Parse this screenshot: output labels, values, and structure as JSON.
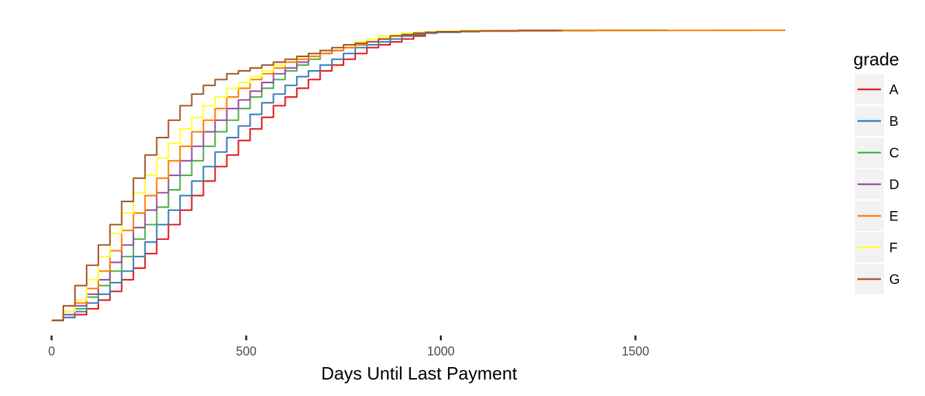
{
  "chart_data": {
    "type": "line",
    "xlabel": "Days Until Last Payment",
    "ylabel": "",
    "xlim": [
      0,
      1900
    ],
    "ylim": [
      0,
      1
    ],
    "x_ticks": [
      0,
      500,
      1000,
      1500
    ],
    "grid": false,
    "y_axis_shown": false,
    "legend": {
      "title": "grade",
      "position": "right"
    },
    "series": [
      {
        "name": "A",
        "color": "#E41A1C",
        "x": [
          0,
          30,
          60,
          90,
          120,
          150,
          180,
          210,
          240,
          270,
          300,
          330,
          360,
          390,
          420,
          450,
          480,
          510,
          540,
          570,
          600,
          630,
          660,
          690,
          720,
          750,
          780,
          810,
          840,
          870,
          900,
          930,
          960,
          990,
          1050,
          1100,
          1200,
          1310
        ],
        "y": [
          0.0,
          0.01,
          0.02,
          0.04,
          0.07,
          0.1,
          0.14,
          0.18,
          0.23,
          0.28,
          0.33,
          0.38,
          0.43,
          0.48,
          0.53,
          0.57,
          0.62,
          0.66,
          0.7,
          0.74,
          0.77,
          0.8,
          0.83,
          0.86,
          0.88,
          0.9,
          0.92,
          0.94,
          0.95,
          0.96,
          0.97,
          0.98,
          0.99,
          0.995,
          0.997,
          0.998,
          0.999,
          1.0
        ]
      },
      {
        "name": "B",
        "color": "#377EB8",
        "x": [
          0,
          30,
          60,
          90,
          120,
          150,
          180,
          210,
          240,
          270,
          300,
          330,
          360,
          390,
          420,
          450,
          480,
          510,
          540,
          570,
          600,
          630,
          660,
          690,
          720,
          750,
          780,
          810,
          840,
          870,
          900,
          930,
          960,
          990,
          1050,
          1100,
          1200,
          1300,
          1400,
          1500,
          1585
        ],
        "y": [
          0.0,
          0.01,
          0.03,
          0.06,
          0.09,
          0.13,
          0.17,
          0.22,
          0.27,
          0.33,
          0.38,
          0.43,
          0.48,
          0.53,
          0.58,
          0.63,
          0.67,
          0.71,
          0.75,
          0.78,
          0.81,
          0.84,
          0.86,
          0.88,
          0.9,
          0.92,
          0.94,
          0.95,
          0.96,
          0.97,
          0.98,
          0.985,
          0.99,
          0.993,
          0.995,
          0.997,
          0.998,
          0.999,
          0.9995,
          1.0,
          1.0
        ]
      },
      {
        "name": "C",
        "color": "#4DAF4A",
        "x": [
          0,
          30,
          60,
          90,
          120,
          150,
          180,
          210,
          240,
          270,
          300,
          330,
          360,
          390,
          420,
          450,
          480,
          510,
          540,
          570,
          600,
          630,
          660,
          690,
          720,
          750,
          780,
          810,
          840,
          870,
          900,
          930,
          960,
          990,
          1050,
          1100,
          1200,
          1300,
          1400,
          1550
        ],
        "y": [
          0.0,
          0.02,
          0.04,
          0.08,
          0.12,
          0.17,
          0.22,
          0.28,
          0.33,
          0.39,
          0.45,
          0.5,
          0.55,
          0.6,
          0.65,
          0.69,
          0.73,
          0.77,
          0.8,
          0.83,
          0.86,
          0.88,
          0.9,
          0.92,
          0.93,
          0.94,
          0.95,
          0.96,
          0.97,
          0.98,
          0.985,
          0.99,
          0.993,
          0.995,
          0.997,
          0.998,
          0.999,
          0.9995,
          1.0,
          1.0
        ]
      },
      {
        "name": "D",
        "color": "#984EA3",
        "x": [
          0,
          30,
          60,
          90,
          120,
          150,
          180,
          210,
          240,
          270,
          300,
          330,
          360,
          390,
          420,
          450,
          480,
          510,
          540,
          570,
          600,
          630,
          660,
          690,
          720,
          750,
          780,
          810,
          840,
          870,
          900,
          930,
          960,
          990,
          1050,
          1100,
          1200,
          1310
        ],
        "y": [
          0.0,
          0.02,
          0.05,
          0.09,
          0.14,
          0.2,
          0.26,
          0.32,
          0.38,
          0.44,
          0.5,
          0.55,
          0.6,
          0.65,
          0.69,
          0.73,
          0.76,
          0.79,
          0.82,
          0.85,
          0.87,
          0.89,
          0.91,
          0.92,
          0.93,
          0.94,
          0.95,
          0.96,
          0.97,
          0.98,
          0.985,
          0.99,
          0.993,
          0.995,
          0.997,
          0.998,
          0.999,
          1.0
        ]
      },
      {
        "name": "E",
        "color": "#FF7F00",
        "x": [
          0,
          30,
          60,
          90,
          120,
          150,
          180,
          210,
          240,
          270,
          300,
          330,
          360,
          390,
          420,
          450,
          480,
          510,
          540,
          570,
          600,
          630,
          660,
          690,
          720,
          750,
          780,
          810,
          840,
          870,
          900,
          930,
          960,
          990,
          1050,
          1100,
          1200,
          1300,
          1400,
          1500,
          1600,
          1700,
          1800,
          1885
        ],
        "y": [
          0.0,
          0.03,
          0.06,
          0.11,
          0.17,
          0.24,
          0.31,
          0.37,
          0.43,
          0.49,
          0.55,
          0.6,
          0.65,
          0.69,
          0.73,
          0.77,
          0.8,
          0.83,
          0.85,
          0.87,
          0.89,
          0.9,
          0.91,
          0.92,
          0.93,
          0.94,
          0.95,
          0.96,
          0.97,
          0.98,
          0.985,
          0.99,
          0.993,
          0.995,
          0.996,
          0.997,
          0.998,
          0.9985,
          0.999,
          0.9993,
          0.9996,
          0.9998,
          1.0,
          1.0
        ]
      },
      {
        "name": "F",
        "color": "#FFFF33",
        "x": [
          0,
          30,
          60,
          90,
          120,
          150,
          180,
          210,
          240,
          270,
          300,
          330,
          360,
          390,
          420,
          450,
          480,
          510,
          540,
          570,
          600,
          630,
          660,
          690,
          720,
          750,
          780,
          810,
          840,
          870,
          900,
          930,
          960,
          990,
          1050,
          1135
        ],
        "y": [
          0.0,
          0.03,
          0.07,
          0.14,
          0.22,
          0.3,
          0.37,
          0.44,
          0.5,
          0.56,
          0.61,
          0.66,
          0.7,
          0.74,
          0.77,
          0.8,
          0.82,
          0.84,
          0.86,
          0.88,
          0.9,
          0.91,
          0.92,
          0.93,
          0.94,
          0.95,
          0.96,
          0.97,
          0.98,
          0.985,
          0.99,
          0.993,
          0.995,
          0.997,
          0.999,
          1.0
        ]
      },
      {
        "name": "G",
        "color": "#A65628",
        "x": [
          0,
          30,
          60,
          90,
          120,
          150,
          180,
          210,
          240,
          270,
          300,
          330,
          360,
          390,
          420,
          450,
          480,
          510,
          540,
          570,
          600,
          630,
          660,
          690,
          720,
          750,
          780,
          810,
          840,
          870,
          900,
          930,
          960,
          990,
          1050,
          1100,
          1200,
          1310
        ],
        "y": [
          0.0,
          0.05,
          0.12,
          0.19,
          0.26,
          0.33,
          0.41,
          0.49,
          0.57,
          0.63,
          0.69,
          0.74,
          0.78,
          0.81,
          0.83,
          0.85,
          0.86,
          0.87,
          0.88,
          0.89,
          0.9,
          0.91,
          0.92,
          0.93,
          0.94,
          0.95,
          0.955,
          0.96,
          0.97,
          0.98,
          0.985,
          0.99,
          0.993,
          0.995,
          0.997,
          0.998,
          0.999,
          1.0
        ]
      }
    ]
  }
}
